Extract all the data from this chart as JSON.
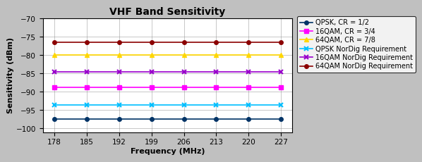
{
  "title": "VHF Band Sensitivity",
  "xlabel": "Frequency (MHz)",
  "ylabel": "Sensitivity (dBm)",
  "frequencies": [
    178,
    185,
    192,
    199,
    206,
    213,
    220,
    227
  ],
  "series": [
    {
      "label": "QPSK, CR = 1/2",
      "values": [
        -97.5,
        -97.5,
        -97.5,
        -97.5,
        -97.5,
        -97.5,
        -97.5,
        -97.5
      ],
      "color": "#003366",
      "marker": "o",
      "linewidth": 1.2,
      "markersize": 4
    },
    {
      "label": "16QAM, CR = 3/4",
      "values": [
        -88.8,
        -88.8,
        -88.8,
        -88.8,
        -88.8,
        -88.8,
        -88.8,
        -88.8
      ],
      "color": "#FF00FF",
      "marker": "s",
      "linewidth": 1.2,
      "markersize": 4
    },
    {
      "label": "64QAM, CR = 7/8",
      "values": [
        -80.0,
        -80.0,
        -80.0,
        -80.0,
        -80.0,
        -80.0,
        -80.0,
        -80.0
      ],
      "color": "#FFD700",
      "marker": "^",
      "linewidth": 1.2,
      "markersize": 4
    },
    {
      "label": "QPSK NorDig Requirement",
      "values": [
        -93.5,
        -93.5,
        -93.5,
        -93.5,
        -93.5,
        -93.5,
        -93.5,
        -93.5
      ],
      "color": "#00BFFF",
      "marker": "x",
      "linewidth": 1.2,
      "markersize": 5,
      "markeredgewidth": 1.5
    },
    {
      "label": "16QAM NorDig Requirement",
      "values": [
        -84.5,
        -84.5,
        -84.5,
        -84.5,
        -84.5,
        -84.5,
        -84.5,
        -84.5
      ],
      "color": "#9900CC",
      "marker": "x",
      "linewidth": 1.2,
      "markersize": 5,
      "markeredgewidth": 1.5
    },
    {
      "label": "64QAM NorDig Requirement",
      "values": [
        -76.5,
        -76.5,
        -76.5,
        -76.5,
        -76.5,
        -76.5,
        -76.5,
        -76.5
      ],
      "color": "#8B0000",
      "marker": "o",
      "linewidth": 1.2,
      "markersize": 4,
      "markeredgewidth": 1.0
    }
  ],
  "ylim": [
    -101,
    -70
  ],
  "yticks": [
    -100,
    -95,
    -90,
    -85,
    -80,
    -75,
    -70
  ],
  "xticks": [
    178,
    185,
    192,
    199,
    206,
    213,
    220,
    227
  ],
  "background_color": "#C0C0C0",
  "plot_bg_color": "#FFFFFF",
  "grid": true,
  "title_fontsize": 10,
  "axis_label_fontsize": 8,
  "tick_fontsize": 7.5,
  "legend_fontsize": 7
}
